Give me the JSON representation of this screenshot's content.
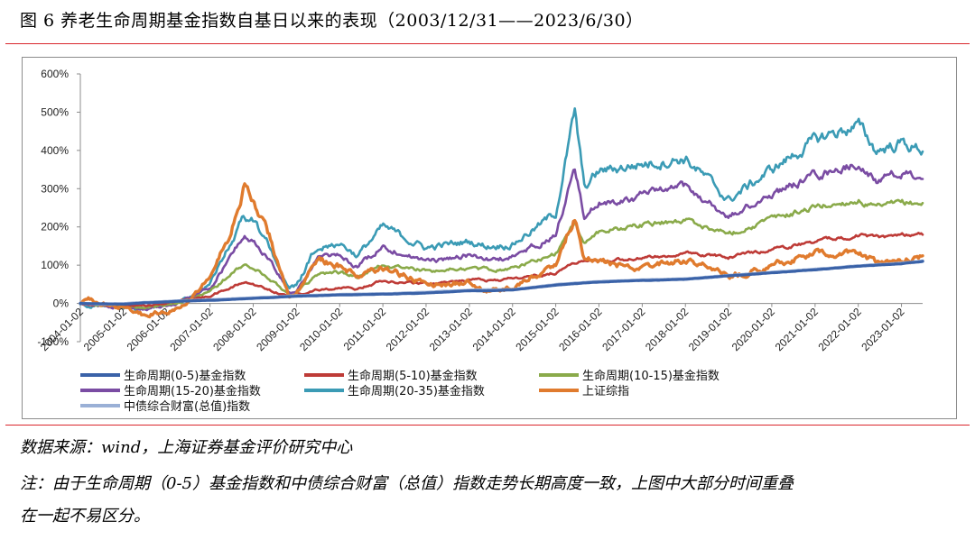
{
  "figure_title": "图 6  养老生命周期基金指数自基日以来的表现（2003/12/31——2023/6/30）",
  "source_note": "数据来源：wind，上海证券基金评价研究中心",
  "footnote": [
    "注：由于生命周期（0-5）基金指数和中债综合财富（总值）指数走势长期高度一致，上图中大部分时间重叠",
    "在一起不易区分。"
  ],
  "chart_data": {
    "type": "line",
    "title": "",
    "xlabel": "",
    "ylabel": "",
    "x": [
      "2004-01-02",
      "2005-01-02",
      "2006-01-02",
      "2007-01-02",
      "2008-01-02",
      "2009-01-02",
      "2010-01-02",
      "2011-01-02",
      "2012-01-02",
      "2013-01-02",
      "2014-01-02",
      "2015-01-02",
      "2016-01-02",
      "2017-01-02",
      "2018-01-02",
      "2019-01-02",
      "2020-01-02",
      "2021-01-02",
      "2022-01-02",
      "2023-01-02"
    ],
    "x_tick_labels": [
      "2004-01-02",
      "2005-01-02",
      "2006-01-02",
      "2007-01-02",
      "2008-01-02",
      "2009-01-02",
      "2010-01-02",
      "2011-01-02",
      "2012-01-02",
      "2013-01-02",
      "2014-01-02",
      "2015-01-02",
      "2016-01-02",
      "2017-01-02",
      "2018-01-02",
      "2019-01-02",
      "2020-01-02",
      "2021-01-02",
      "2022-01-02",
      "2023-01-02"
    ],
    "y_tick_labels": [
      "600%",
      "500%",
      "400%",
      "300%",
      "200%",
      "100%",
      "0%",
      "-100%"
    ],
    "ylim": [
      -100,
      600
    ],
    "x_end": "2023-06-30",
    "grid": false,
    "legend_position": "bottom",
    "series": [
      {
        "name": "生命周期(0-5)基金指数",
        "color": "#3a62a8",
        "width": 3.2,
        "points": [
          [
            "2003-12-31",
            0
          ],
          [
            "2004-06-01",
            -1
          ],
          [
            "2005-01-02",
            -2
          ],
          [
            "2005-06-01",
            1
          ],
          [
            "2006-01-02",
            4
          ],
          [
            "2006-06-01",
            6
          ],
          [
            "2007-01-02",
            8
          ],
          [
            "2007-06-01",
            10
          ],
          [
            "2008-01-02",
            13
          ],
          [
            "2008-06-01",
            15
          ],
          [
            "2009-01-02",
            19
          ],
          [
            "2009-06-01",
            20
          ],
          [
            "2010-01-02",
            22
          ],
          [
            "2011-01-02",
            24
          ],
          [
            "2012-01-02",
            27
          ],
          [
            "2013-01-02",
            33
          ],
          [
            "2013-06-01",
            33
          ],
          [
            "2014-01-02",
            35
          ],
          [
            "2015-01-02",
            48
          ],
          [
            "2016-01-02",
            56
          ],
          [
            "2017-01-02",
            60
          ],
          [
            "2017-06-01",
            61
          ],
          [
            "2018-01-02",
            63
          ],
          [
            "2019-01-02",
            72
          ],
          [
            "2020-01-02",
            80
          ],
          [
            "2021-01-02",
            88
          ],
          [
            "2022-01-02",
            97
          ],
          [
            "2023-01-02",
            104
          ],
          [
            "2023-06-30",
            110
          ]
        ]
      },
      {
        "name": "生命周期(5-10)基金指数",
        "color": "#be3b37",
        "width": 2.6,
        "points": [
          [
            "2003-12-31",
            0
          ],
          [
            "2004-06-01",
            -3
          ],
          [
            "2005-01-02",
            -6
          ],
          [
            "2005-06-01",
            -8
          ],
          [
            "2006-01-02",
            0
          ],
          [
            "2006-06-01",
            8
          ],
          [
            "2007-01-02",
            20
          ],
          [
            "2007-06-01",
            38
          ],
          [
            "2007-10-16",
            55
          ],
          [
            "2008-01-02",
            50
          ],
          [
            "2008-06-01",
            35
          ],
          [
            "2008-11-01",
            18
          ],
          [
            "2009-01-02",
            22
          ],
          [
            "2009-07-01",
            38
          ],
          [
            "2010-01-02",
            40
          ],
          [
            "2010-06-01",
            38
          ],
          [
            "2011-01-02",
            60
          ],
          [
            "2012-01-02",
            52
          ],
          [
            "2013-01-02",
            62
          ],
          [
            "2013-06-01",
            60
          ],
          [
            "2014-01-02",
            64
          ],
          [
            "2015-01-02",
            80
          ],
          [
            "2015-06-12",
            108
          ],
          [
            "2016-01-02",
            112
          ],
          [
            "2017-01-02",
            118
          ],
          [
            "2018-01-02",
            130
          ],
          [
            "2019-01-02",
            122
          ],
          [
            "2020-01-02",
            142
          ],
          [
            "2021-01-02",
            162
          ],
          [
            "2021-06-01",
            168
          ],
          [
            "2022-01-02",
            180
          ],
          [
            "2022-06-01",
            172
          ],
          [
            "2023-01-02",
            180
          ],
          [
            "2023-06-30",
            182
          ]
        ]
      },
      {
        "name": "生命周期(10-15)基金指数",
        "color": "#8aaa4a",
        "width": 2.6,
        "points": [
          [
            "2003-12-31",
            0
          ],
          [
            "2004-06-01",
            -4
          ],
          [
            "2005-01-02",
            -8
          ],
          [
            "2005-06-01",
            -12
          ],
          [
            "2006-01-02",
            -2
          ],
          [
            "2006-06-01",
            6
          ],
          [
            "2007-01-02",
            30
          ],
          [
            "2007-06-01",
            70
          ],
          [
            "2007-10-16",
            100
          ],
          [
            "2008-01-02",
            92
          ],
          [
            "2008-06-01",
            62
          ],
          [
            "2008-11-01",
            22
          ],
          [
            "2009-01-02",
            28
          ],
          [
            "2009-07-01",
            78
          ],
          [
            "2010-01-02",
            82
          ],
          [
            "2010-06-01",
            68
          ],
          [
            "2011-01-02",
            100
          ],
          [
            "2012-01-02",
            85
          ],
          [
            "2013-01-02",
            92
          ],
          [
            "2013-06-01",
            88
          ],
          [
            "2014-01-02",
            92
          ],
          [
            "2015-01-02",
            130
          ],
          [
            "2015-06-12",
            212
          ],
          [
            "2015-09-01",
            160
          ],
          [
            "2016-01-02",
            188
          ],
          [
            "2017-01-02",
            205
          ],
          [
            "2018-01-02",
            218
          ],
          [
            "2019-01-02",
            182
          ],
          [
            "2020-01-02",
            220
          ],
          [
            "2021-01-02",
            252
          ],
          [
            "2021-06-01",
            258
          ],
          [
            "2022-01-02",
            270
          ],
          [
            "2022-06-01",
            248
          ],
          [
            "2023-01-02",
            262
          ],
          [
            "2023-06-30",
            262
          ]
        ]
      },
      {
        "name": "生命周期(15-20)基金指数",
        "color": "#7a4ca3",
        "width": 2.6,
        "points": [
          [
            "2003-12-31",
            0
          ],
          [
            "2004-06-01",
            -5
          ],
          [
            "2005-01-02",
            -10
          ],
          [
            "2005-06-01",
            -14
          ],
          [
            "2006-01-02",
            -5
          ],
          [
            "2006-06-01",
            8
          ],
          [
            "2007-01-02",
            40
          ],
          [
            "2007-06-01",
            110
          ],
          [
            "2007-10-16",
            178
          ],
          [
            "2008-01-02",
            162
          ],
          [
            "2008-06-01",
            108
          ],
          [
            "2008-11-01",
            28
          ],
          [
            "2009-01-02",
            34
          ],
          [
            "2009-07-01",
            118
          ],
          [
            "2010-01-02",
            125
          ],
          [
            "2010-06-01",
            95
          ],
          [
            "2011-01-02",
            150
          ],
          [
            "2012-01-02",
            110
          ],
          [
            "2013-01-02",
            125
          ],
          [
            "2013-06-01",
            115
          ],
          [
            "2014-01-02",
            120
          ],
          [
            "2015-01-02",
            178
          ],
          [
            "2015-06-12",
            352
          ],
          [
            "2015-09-01",
            225
          ],
          [
            "2016-01-02",
            262
          ],
          [
            "2017-01-02",
            282
          ],
          [
            "2018-01-02",
            305
          ],
          [
            "2019-01-02",
            225
          ],
          [
            "2020-01-02",
            285
          ],
          [
            "2021-01-02",
            335
          ],
          [
            "2021-06-01",
            348
          ],
          [
            "2022-01-02",
            365
          ],
          [
            "2022-06-01",
            322
          ],
          [
            "2023-01-02",
            338
          ],
          [
            "2023-06-30",
            334
          ]
        ]
      },
      {
        "name": "生命周期(20-35)基金指数",
        "color": "#3b9bb5",
        "width": 2.6,
        "points": [
          [
            "2003-12-31",
            0
          ],
          [
            "2004-06-01",
            -6
          ],
          [
            "2005-01-02",
            -12
          ],
          [
            "2005-06-01",
            -16
          ],
          [
            "2006-01-02",
            -6
          ],
          [
            "2006-06-01",
            10
          ],
          [
            "2007-01-02",
            50
          ],
          [
            "2007-06-01",
            140
          ],
          [
            "2007-10-16",
            230
          ],
          [
            "2008-01-02",
            215
          ],
          [
            "2008-06-01",
            140
          ],
          [
            "2008-11-01",
            38
          ],
          [
            "2009-01-02",
            45
          ],
          [
            "2009-07-01",
            152
          ],
          [
            "2010-01-02",
            160
          ],
          [
            "2010-06-01",
            125
          ],
          [
            "2011-01-02",
            200
          ],
          [
            "2012-01-02",
            145
          ],
          [
            "2013-01-02",
            162
          ],
          [
            "2013-06-01",
            150
          ],
          [
            "2014-01-02",
            155
          ],
          [
            "2015-01-02",
            235
          ],
          [
            "2015-06-12",
            500
          ],
          [
            "2015-09-01",
            300
          ],
          [
            "2016-01-02",
            345
          ],
          [
            "2017-01-02",
            365
          ],
          [
            "2018-01-02",
            380
          ],
          [
            "2019-01-02",
            270
          ],
          [
            "2020-01-02",
            350
          ],
          [
            "2021-01-02",
            425
          ],
          [
            "2021-06-01",
            445
          ],
          [
            "2022-01-02",
            465
          ],
          [
            "2022-06-01",
            400
          ],
          [
            "2023-01-02",
            420
          ],
          [
            "2023-06-30",
            400
          ]
        ]
      },
      {
        "name": "上证综指",
        "color": "#e07b2e",
        "width": 3.4,
        "points": [
          [
            "2003-12-31",
            0
          ],
          [
            "2004-03-01",
            18
          ],
          [
            "2004-06-01",
            0
          ],
          [
            "2005-01-02",
            -10
          ],
          [
            "2005-06-01",
            -30
          ],
          [
            "2006-01-02",
            -20
          ],
          [
            "2006-06-01",
            2
          ],
          [
            "2007-01-02",
            70
          ],
          [
            "2007-06-01",
            170
          ],
          [
            "2007-10-16",
            302
          ],
          [
            "2008-01-02",
            270
          ],
          [
            "2008-06-01",
            160
          ],
          [
            "2008-11-01",
            15
          ],
          [
            "2009-01-02",
            22
          ],
          [
            "2009-07-01",
            115
          ],
          [
            "2010-01-02",
            100
          ],
          [
            "2010-06-01",
            70
          ],
          [
            "2011-01-02",
            95
          ],
          [
            "2012-01-02",
            50
          ],
          [
            "2013-01-02",
            55
          ],
          [
            "2013-06-01",
            35
          ],
          [
            "2014-01-02",
            40
          ],
          [
            "2015-01-02",
            100
          ],
          [
            "2015-06-12",
            230
          ],
          [
            "2015-09-01",
            120
          ],
          [
            "2016-01-02",
            110
          ],
          [
            "2017-01-02",
            90
          ],
          [
            "2018-01-02",
            115
          ],
          [
            "2019-01-02",
            70
          ],
          [
            "2020-01-02",
            100
          ],
          [
            "2021-01-02",
            130
          ],
          [
            "2021-06-01",
            125
          ],
          [
            "2022-01-02",
            135
          ],
          [
            "2022-06-01",
            110
          ],
          [
            "2023-01-02",
            115
          ],
          [
            "2023-06-30",
            120
          ]
        ]
      },
      {
        "name": "中债综合财富(总值)指数",
        "color": "#9ab0d6",
        "width": 3.6,
        "points": [
          [
            "2003-12-31",
            0
          ],
          [
            "2004-06-01",
            -2
          ],
          [
            "2005-01-02",
            -1
          ],
          [
            "2005-06-01",
            2
          ],
          [
            "2006-01-02",
            5
          ],
          [
            "2006-06-01",
            7
          ],
          [
            "2007-01-02",
            9
          ],
          [
            "2007-06-01",
            11
          ],
          [
            "2008-01-02",
            14
          ],
          [
            "2008-06-01",
            16
          ],
          [
            "2009-01-02",
            20
          ],
          [
            "2009-06-01",
            21
          ],
          [
            "2010-01-02",
            23
          ],
          [
            "2011-01-02",
            25
          ],
          [
            "2012-01-02",
            29
          ],
          [
            "2013-01-02",
            34
          ],
          [
            "2013-06-01",
            35
          ],
          [
            "2014-01-02",
            36
          ],
          [
            "2015-01-02",
            49
          ],
          [
            "2016-01-02",
            57
          ],
          [
            "2017-01-02",
            61
          ],
          [
            "2017-06-01",
            62
          ],
          [
            "2018-01-02",
            64
          ],
          [
            "2019-01-02",
            73
          ],
          [
            "2020-01-02",
            81
          ],
          [
            "2021-01-02",
            89
          ],
          [
            "2022-01-02",
            98
          ],
          [
            "2023-01-02",
            105
          ],
          [
            "2023-06-30",
            111
          ]
        ]
      }
    ]
  }
}
